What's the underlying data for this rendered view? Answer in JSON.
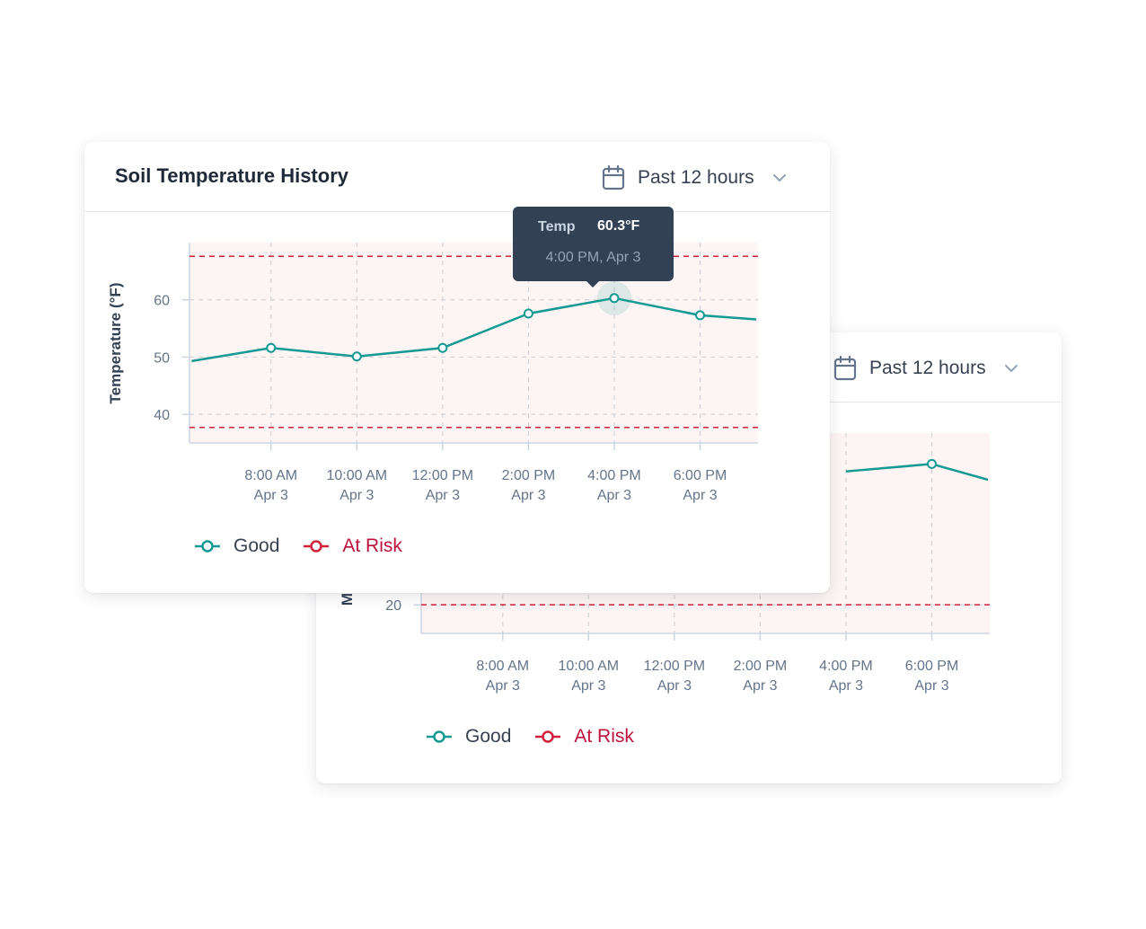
{
  "colors": {
    "good": "#159a93",
    "at_risk": "#d11f3c",
    "grid": "#d1d5db",
    "axis": "#cbd5e1",
    "risk_band": "#fdf4f4",
    "tick_text": "#64748b"
  },
  "icons": {
    "calendar": "calendar-icon",
    "chevron": "chevron-down-icon"
  },
  "front_card": {
    "title": "Soil Temperature History",
    "range_label": "Past 12 hours",
    "tooltip": {
      "key": "Temp",
      "value": "60.3°F",
      "time": "4:00 PM, Apr 3"
    },
    "legend": {
      "good": "Good",
      "at_risk": "At Risk"
    }
  },
  "back_card": {
    "range_label": "Past 12 hours",
    "legend": {
      "good": "Good",
      "at_risk": "At Risk"
    }
  },
  "chart_data": [
    {
      "type": "line",
      "ylabel": "Temperature (°F)",
      "x_ticks": [
        [
          "8:00 AM",
          "Apr 3"
        ],
        [
          "10:00 AM",
          "Apr 3"
        ],
        [
          "12:00 PM",
          "Apr 3"
        ],
        [
          "2:00 PM",
          "Apr 3"
        ],
        [
          "4:00 PM",
          "Apr 3"
        ],
        [
          "6:00 PM",
          "Apr 3"
        ]
      ],
      "x_hours": [
        8,
        10,
        12,
        14,
        16,
        18
      ],
      "xlim": [
        6.1,
        19.35
      ],
      "y_ticks": [
        40,
        50,
        60
      ],
      "ylim": [
        35,
        70
      ],
      "series": [
        {
          "name": "Good",
          "x": [
            6.15,
            8,
            10,
            12,
            14,
            16,
            18,
            20
          ],
          "values": [
            49.3,
            51.6,
            50.1,
            51.6,
            57.6,
            60.3,
            57.3,
            56.2
          ],
          "markers": [
            false,
            true,
            true,
            true,
            true,
            true,
            true,
            false
          ]
        }
      ],
      "thresholds": [
        67.6,
        37.7
      ],
      "highlight_index": 5
    },
    {
      "type": "line",
      "ylabel": "M",
      "x_ticks": [
        [
          "8:00 AM",
          "Apr 3"
        ],
        [
          "10:00 AM",
          "Apr 3"
        ],
        [
          "12:00 PM",
          "Apr 3"
        ],
        [
          "2:00 PM",
          "Apr 3"
        ],
        [
          "4:00 PM",
          "Apr 3"
        ],
        [
          "6:00 PM",
          "Apr 3"
        ]
      ],
      "x_hours": [
        8,
        10,
        12,
        14,
        16,
        18
      ],
      "xlim": [
        6.1,
        19.35
      ],
      "y_ticks": [
        20
      ],
      "ylim": [
        15,
        50
      ],
      "series": [
        {
          "name": "Good",
          "x": [
            16,
            18,
            20
          ],
          "values": [
            43.3,
            44.6,
            40.4
          ],
          "markers": [
            false,
            true,
            false
          ]
        }
      ],
      "thresholds": [
        20
      ],
      "highlight_index": -1
    }
  ]
}
